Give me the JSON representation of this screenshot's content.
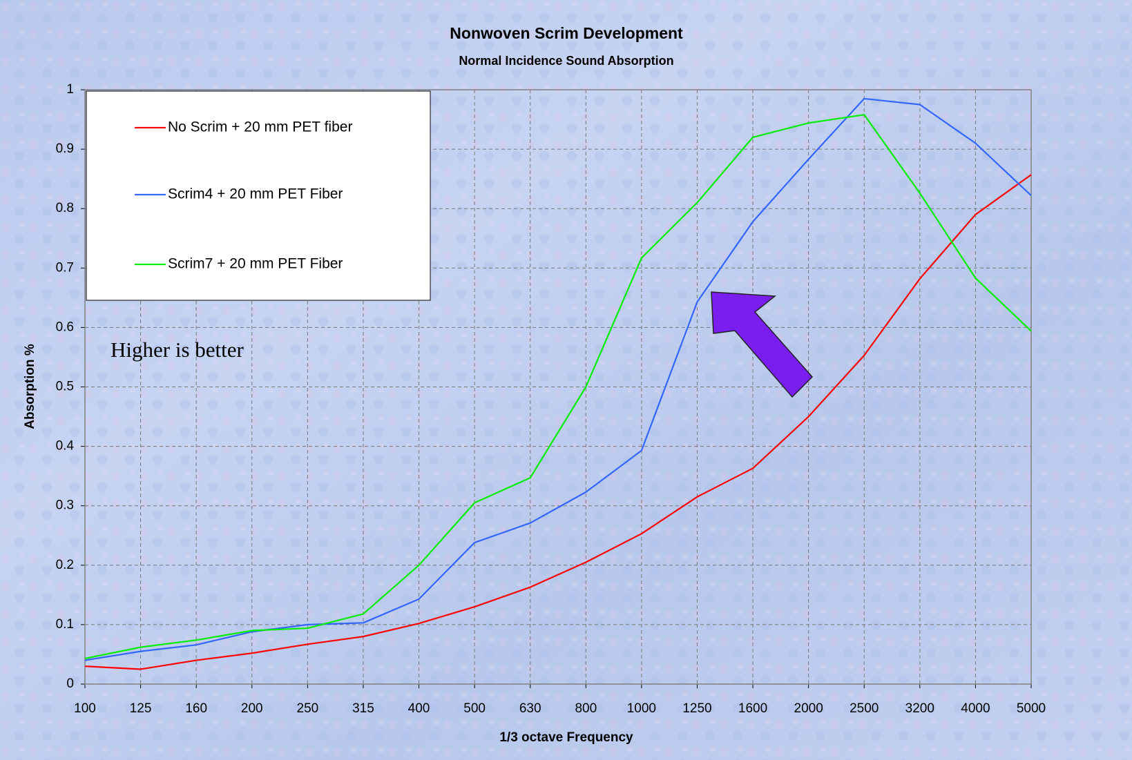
{
  "chart_data": {
    "type": "line",
    "title": "Nonwoven Scrim Development",
    "subtitle": "Normal Incidence Sound Absorption",
    "x_label": "1/3 octave Frequency",
    "y_label": "Absorption %",
    "annotation": "Higher is better",
    "categories": [
      "100",
      "125",
      "160",
      "200",
      "250",
      "315",
      "400",
      "500",
      "630",
      "800",
      "1000",
      "1250",
      "1600",
      "2000",
      "2500",
      "3200",
      "4000",
      "5000"
    ],
    "series": [
      {
        "name": "No Scrim + 20 mm PET fiber",
        "color": "#ff0000",
        "values": [
          0.03,
          0.025,
          0.04,
          0.052,
          0.067,
          0.08,
          0.102,
          0.13,
          0.163,
          0.205,
          0.253,
          0.315,
          0.363,
          0.45,
          0.553,
          0.682,
          0.79,
          0.857
        ]
      },
      {
        "name": "Scrim4 + 20 mm PET Fiber",
        "color": "#3366ff",
        "values": [
          0.04,
          0.055,
          0.066,
          0.088,
          0.1,
          0.103,
          0.143,
          0.238,
          0.271,
          0.323,
          0.393,
          0.643,
          0.778,
          0.883,
          0.985,
          0.975,
          0.91,
          0.822
        ]
      },
      {
        "name": "Scrim7 + 20 mm PET Fiber",
        "color": "#00ee00",
        "values": [
          0.043,
          0.062,
          0.074,
          0.09,
          0.094,
          0.118,
          0.2,
          0.305,
          0.347,
          0.5,
          0.717,
          0.81,
          0.92,
          0.944,
          0.958,
          0.826,
          0.683,
          0.594
        ]
      }
    ],
    "ylim": [
      0,
      1
    ],
    "yticks": [
      0,
      0.1,
      0.2,
      0.3,
      0.4,
      0.5,
      0.6,
      0.7,
      0.8,
      0.9,
      1
    ],
    "grid": true,
    "legend": "upper left"
  }
}
